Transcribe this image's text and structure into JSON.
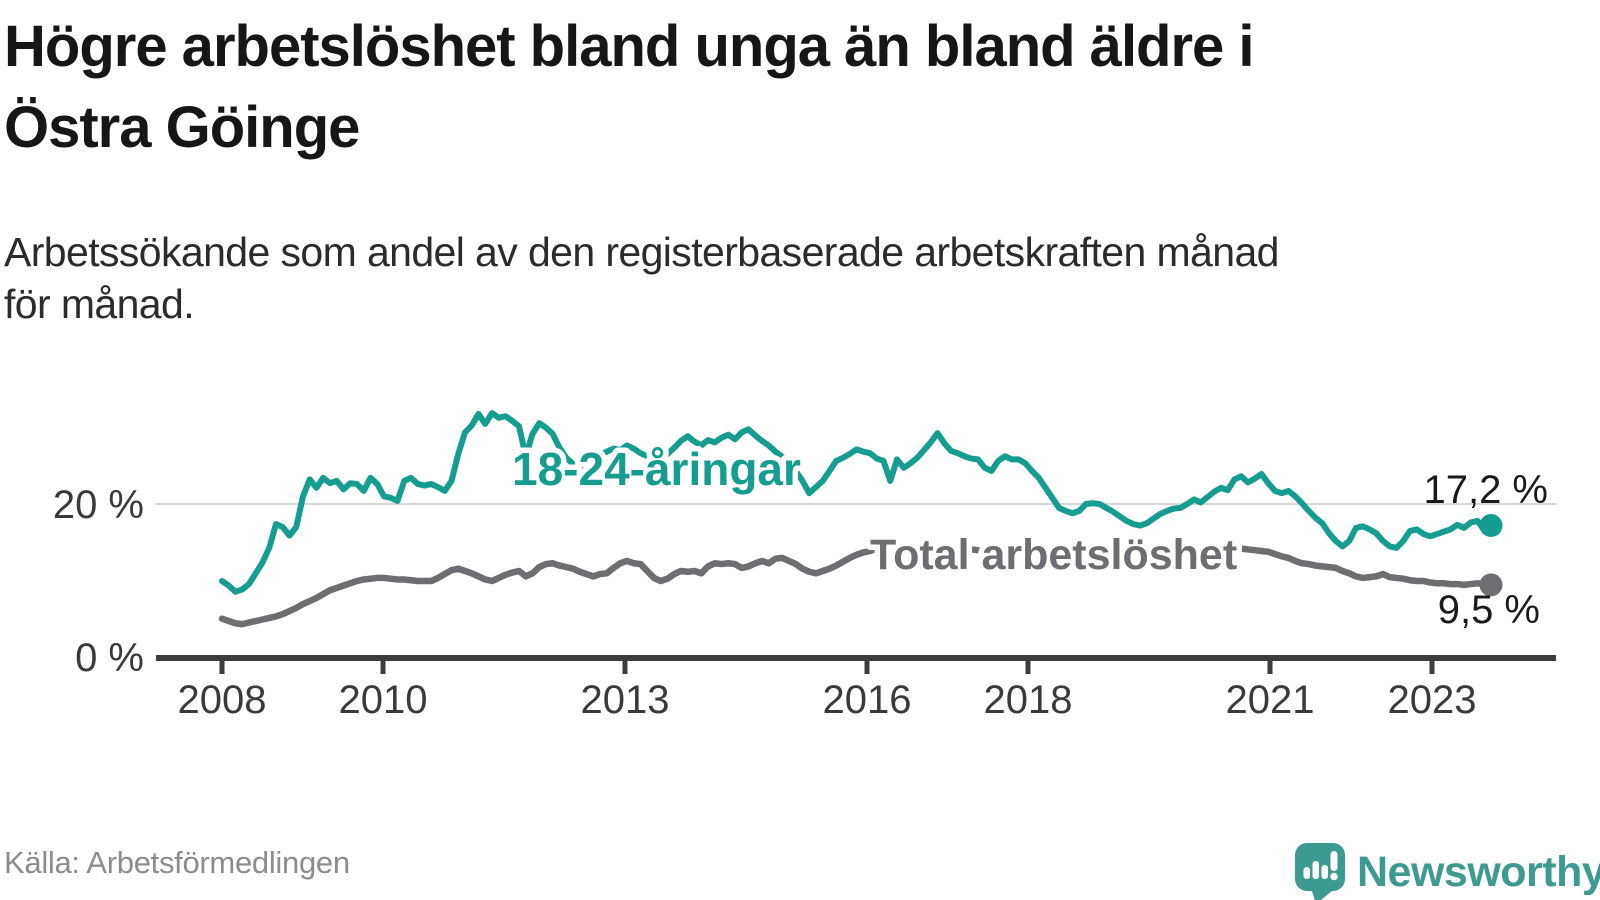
{
  "header": {
    "title_lines": [
      "Högre arbetslöshet bland unga än bland äldre i",
      "Östra Göinge"
    ],
    "subtitle_lines": [
      "Arbetssökande som andel av den registerbaserade arbetskraften månad",
      "för månad."
    ]
  },
  "chart_data": {
    "type": "line",
    "title": "Högre arbetslöshet bland unga än bland äldre i Östra Göinge",
    "subtitle": "Arbetssökande som andel av den registerbaserade arbetskraften månad för månad.",
    "frequency": "monthly",
    "x_start": "2008-01",
    "x_end": "2023-09",
    "ylim": [
      0,
      35
    ],
    "grid": "single gridline at 20 %",
    "legend_position": "inline labels on lines",
    "y_ticks": [
      {
        "label": "20 %",
        "value": 20
      },
      {
        "label": "0 %",
        "value": 0
      }
    ],
    "x_tick_labels": [
      "2008",
      "2010",
      "2013",
      "2016",
      "2018",
      "2021",
      "2023"
    ],
    "series": [
      {
        "name": "18-24-åringar",
        "color": "#159d90",
        "end_label": "17,2 %",
        "end_value": 17.2,
        "values": [
          10.0,
          9.4,
          8.6,
          8.9,
          9.6,
          11.0,
          12.4,
          14.3,
          17.4,
          17.0,
          15.9,
          17.0,
          21.0,
          23.2,
          22.1,
          23.4,
          22.7,
          23.0,
          21.9,
          22.7,
          22.6,
          21.7,
          23.4,
          22.6,
          21.0,
          20.8,
          20.4,
          23.0,
          23.4,
          22.6,
          22.4,
          22.6,
          22.2,
          21.7,
          23.0,
          26.5,
          29.3,
          30.2,
          31.7,
          30.4,
          31.8,
          31.2,
          31.4,
          30.8,
          30.1,
          26.2,
          29.1,
          30.5,
          29.9,
          29.1,
          27.3,
          26.0,
          25.2,
          24.6,
          24.9,
          25.6,
          26.3,
          26.8,
          27.2,
          27.0,
          27.6,
          27.2,
          26.6,
          26.2,
          26.6,
          27.0,
          26.5,
          27.3,
          28.2,
          28.8,
          28.1,
          27.6,
          28.3,
          28.0,
          28.6,
          29.0,
          28.4,
          29.3,
          29.7,
          28.9,
          28.2,
          27.6,
          26.8,
          26.1,
          25.6,
          24.3,
          23.0,
          21.4,
          22.2,
          23.0,
          24.3,
          25.6,
          26.0,
          26.5,
          27.1,
          26.8,
          26.6,
          25.9,
          25.6,
          23.0,
          25.8,
          24.7,
          25.3,
          26.0,
          27.0,
          28.0,
          29.2,
          27.9,
          26.9,
          26.6,
          26.2,
          25.9,
          25.8,
          24.7,
          24.3,
          25.6,
          26.2,
          25.8,
          25.8,
          25.3,
          24.3,
          23.4,
          22.1,
          20.8,
          19.5,
          19.1,
          18.8,
          19.1,
          20.0,
          20.1,
          20.0,
          19.5,
          19.0,
          18.4,
          17.8,
          17.4,
          17.2,
          17.5,
          18.1,
          18.7,
          19.1,
          19.4,
          19.5,
          20.0,
          20.6,
          20.2,
          20.9,
          21.6,
          22.1,
          21.8,
          23.2,
          23.6,
          22.8,
          23.3,
          23.9,
          22.7,
          21.7,
          21.4,
          21.7,
          21.0,
          20.1,
          19.1,
          18.2,
          17.5,
          16.2,
          15.2,
          14.5,
          15.2,
          16.9,
          17.1,
          16.7,
          16.2,
          15.2,
          14.5,
          14.3,
          15.2,
          16.5,
          16.7,
          16.1,
          15.8,
          16.1,
          16.4,
          16.7,
          17.3,
          16.9,
          17.6,
          17.8,
          16.6,
          17.2
        ]
      },
      {
        "name": "Total arbetslöshet",
        "color": "#6e6e72",
        "end_label": "9,5 %",
        "end_value": 9.5,
        "values": [
          5.1,
          4.8,
          4.5,
          4.4,
          4.6,
          4.8,
          5.0,
          5.2,
          5.4,
          5.7,
          6.1,
          6.5,
          7.0,
          7.4,
          7.8,
          8.3,
          8.8,
          9.1,
          9.4,
          9.7,
          10.0,
          10.2,
          10.3,
          10.4,
          10.4,
          10.3,
          10.2,
          10.2,
          10.1,
          10.0,
          10.0,
          10.0,
          10.4,
          10.9,
          11.4,
          11.6,
          11.3,
          11.0,
          10.6,
          10.2,
          10.0,
          10.4,
          10.8,
          11.1,
          11.3,
          10.6,
          11.0,
          11.8,
          12.2,
          12.3,
          12.0,
          11.8,
          11.6,
          11.2,
          10.9,
          10.6,
          10.9,
          11.0,
          11.7,
          12.3,
          12.6,
          12.3,
          12.2,
          11.3,
          10.4,
          10.0,
          10.3,
          10.9,
          11.3,
          11.2,
          11.3,
          11.0,
          11.9,
          12.3,
          12.2,
          12.3,
          12.2,
          11.7,
          11.9,
          12.3,
          12.6,
          12.3,
          12.9,
          13.0,
          12.6,
          12.2,
          11.6,
          11.2,
          11.0,
          11.3,
          11.6,
          12.0,
          12.5,
          13.0,
          13.4,
          13.7,
          13.9,
          14.2,
          14.1,
          14.0,
          13.9,
          13.8,
          13.9,
          14.0,
          14.1,
          14.2,
          14.3,
          14.3,
          14.4,
          14.3,
          14.2,
          14.1,
          14.0,
          13.9,
          13.9,
          14.0,
          14.1,
          14.0,
          13.9,
          13.8,
          13.7,
          13.6,
          13.5,
          13.4,
          13.3,
          13.2,
          13.1,
          13.1,
          13.2,
          13.2,
          13.1,
          13.0,
          13.0,
          12.9,
          12.9,
          12.9,
          13.0,
          13.1,
          13.2,
          13.2,
          13.3,
          13.3,
          13.4,
          13.5,
          13.6,
          13.7,
          14.0,
          14.3,
          14.4,
          14.4,
          14.3,
          14.2,
          14.1,
          14.0,
          13.9,
          13.8,
          13.5,
          13.2,
          13.0,
          12.6,
          12.3,
          12.2,
          12.0,
          11.9,
          11.8,
          11.7,
          11.3,
          11.0,
          10.6,
          10.4,
          10.5,
          10.6,
          10.9,
          10.5,
          10.4,
          10.3,
          10.1,
          10.0,
          10.0,
          9.8,
          9.7,
          9.7,
          9.6,
          9.6,
          9.5,
          9.6,
          9.7,
          9.6,
          9.5
        ]
      }
    ]
  },
  "footer": {
    "source": "Källa: Arbetsförmedlingen",
    "brand": "Newsworthy"
  },
  "colors": {
    "accent_teal": "#159d90",
    "line_gray": "#6e6e72",
    "brand_teal": "#3d9a90",
    "axis": "#3d3d3d",
    "gridline": "#d8d8d8",
    "title_text": "#161616",
    "source_text": "#8c8c8c"
  }
}
